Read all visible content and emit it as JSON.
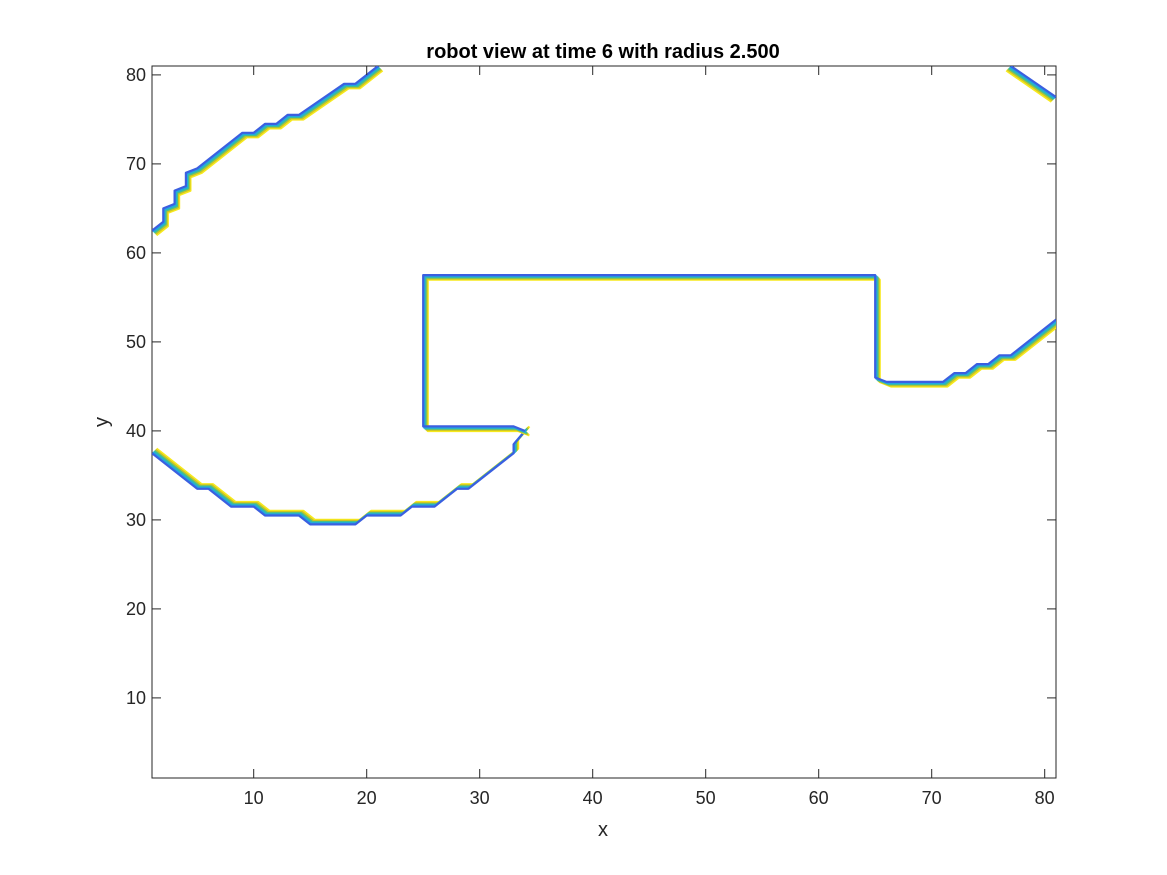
{
  "chart_data": {
    "type": "contour",
    "title": "robot view at time 6 with radius 2.500",
    "xlabel": "x",
    "ylabel": "y",
    "xlim": [
      1,
      81
    ],
    "ylim": [
      1,
      81
    ],
    "xticks": [
      10,
      20,
      30,
      40,
      50,
      60,
      70,
      80
    ],
    "yticks": [
      10,
      20,
      30,
      40,
      50,
      60,
      70,
      80
    ],
    "grid": false,
    "box": true,
    "levels": [
      {
        "name": "",
        "color": "#3b5fe0",
        "offset": 0
      },
      {
        "name": "",
        "color": "#20a8e0",
        "offset": 1
      },
      {
        "name": "",
        "color": "#47c08a",
        "offset": 2
      },
      {
        "name": "",
        "color": "#c9c424",
        "offset": 3
      },
      {
        "name": "",
        "color": "#f7e81c",
        "offset": 4
      }
    ],
    "curves": [
      {
        "id": "upper-left-boundary",
        "points": [
          [
            1,
            62.5
          ],
          [
            2,
            63.5
          ],
          [
            2,
            65
          ],
          [
            3,
            65.5
          ],
          [
            3,
            67
          ],
          [
            4,
            67.5
          ],
          [
            4,
            69
          ],
          [
            5,
            69.5
          ],
          [
            9,
            73.5
          ],
          [
            10,
            73.5
          ],
          [
            11,
            74.5
          ],
          [
            12,
            74.5
          ],
          [
            13,
            75.5
          ],
          [
            14,
            75.5
          ],
          [
            18,
            79
          ],
          [
            19,
            79
          ],
          [
            21,
            81
          ]
        ],
        "normal": [
          1,
          -1
        ]
      },
      {
        "id": "upper-right-boundary",
        "points": [
          [
            77,
            81
          ],
          [
            81,
            77.5
          ]
        ],
        "normal": [
          -1,
          -1
        ]
      },
      {
        "id": "lower-left-arc",
        "points": [
          [
            1,
            37.5
          ],
          [
            5,
            33.5
          ],
          [
            6,
            33.5
          ],
          [
            8,
            31.5
          ],
          [
            10,
            31.5
          ],
          [
            11,
            30.5
          ],
          [
            14,
            30.5
          ],
          [
            15,
            29.5
          ],
          [
            19,
            29.5
          ],
          [
            20,
            30.5
          ],
          [
            23,
            30.5
          ],
          [
            24,
            31.5
          ],
          [
            26,
            31.5
          ],
          [
            28,
            33.5
          ],
          [
            29,
            33.5
          ],
          [
            33,
            37.5
          ],
          [
            33,
            38.5
          ],
          [
            34,
            40
          ]
        ],
        "normal": [
          1,
          1
        ]
      },
      {
        "id": "center-obstacle",
        "points": [
          [
            34,
            40
          ],
          [
            33,
            40.5
          ],
          [
            25,
            40.5
          ],
          [
            25,
            57.5
          ],
          [
            65,
            57.5
          ],
          [
            65,
            46
          ],
          [
            66,
            45.5
          ],
          [
            71,
            45.5
          ],
          [
            72,
            46.5
          ],
          [
            73,
            46.5
          ],
          [
            74,
            47.5
          ],
          [
            75,
            47.5
          ],
          [
            76,
            48.5
          ],
          [
            77,
            48.5
          ],
          [
            81,
            52.5
          ]
        ],
        "normal": [
          1,
          -1
        ]
      }
    ]
  }
}
